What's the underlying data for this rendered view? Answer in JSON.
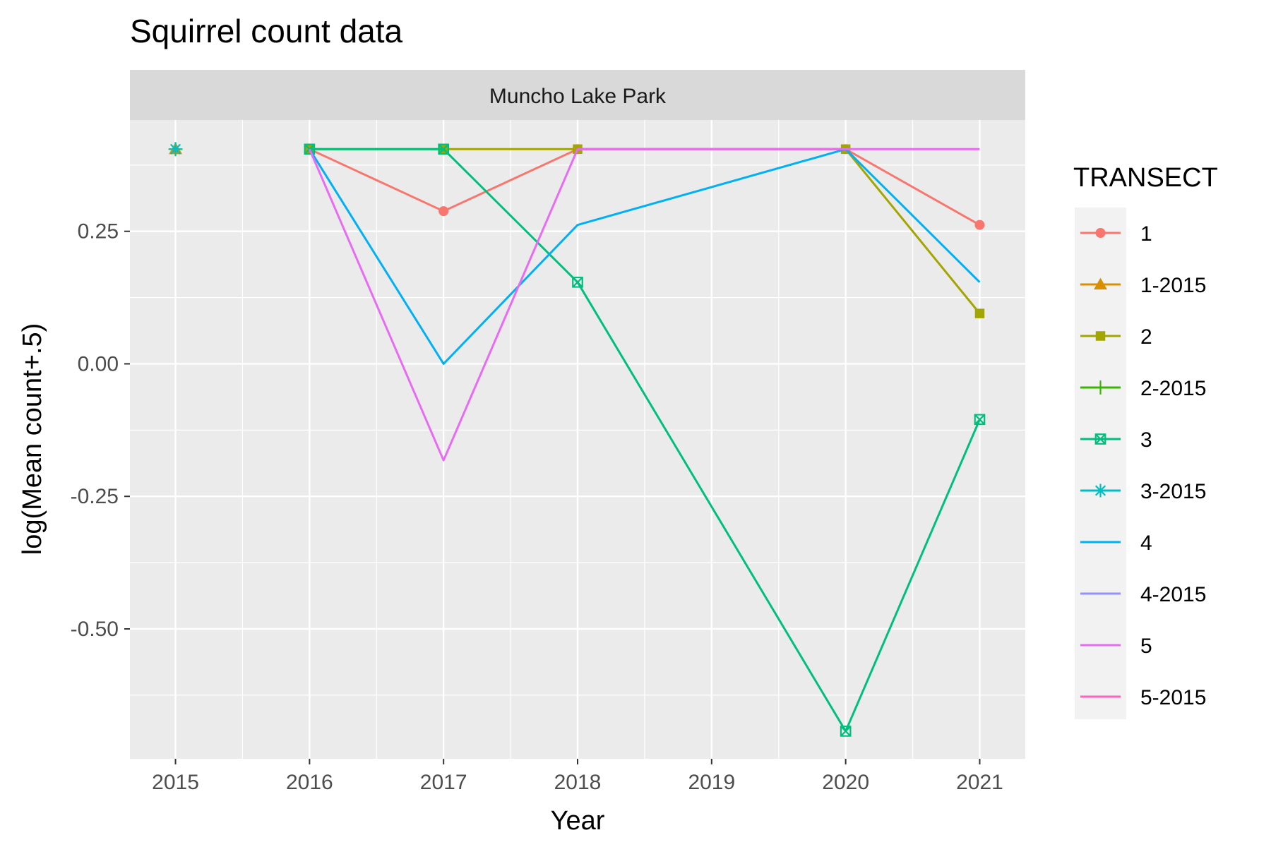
{
  "chart_data": {
    "type": "line",
    "title": "Squirrel count data",
    "facet_label": "Muncho Lake Park",
    "xlabel": "Year",
    "ylabel": "log(Mean count+.5)",
    "x_ticks": [
      "2015",
      "2016",
      "2017",
      "2018",
      "2019",
      "2020",
      "2021"
    ],
    "y_ticks": [
      {
        "value": 0.25,
        "label": "0.25"
      },
      {
        "value": 0.0,
        "label": "0.00"
      },
      {
        "value": -0.25,
        "label": "-0.25"
      },
      {
        "value": -0.5,
        "label": "-0.50"
      }
    ],
    "xlim": [
      2014.66,
      2021.34
    ],
    "ylim": [
      -0.745,
      0.46
    ],
    "grid": true,
    "legend_title": "TRANSECT",
    "legend_position": "right",
    "series": [
      {
        "name": "1",
        "color": "#F8766D",
        "marker": "circle",
        "points": [
          [
            2016,
            0.405
          ],
          [
            2017,
            0.288
          ],
          [
            2018,
            0.405
          ],
          [
            2020,
            0.405
          ],
          [
            2021,
            0.262
          ]
        ]
      },
      {
        "name": "1-2015",
        "color": "#D89000",
        "marker": "triangle",
        "points": [
          [
            2015,
            0.405
          ]
        ]
      },
      {
        "name": "2",
        "color": "#A3A500",
        "marker": "square",
        "points": [
          [
            2016,
            0.405
          ],
          [
            2017,
            0.405
          ],
          [
            2018,
            0.405
          ],
          [
            2020,
            0.405
          ],
          [
            2021,
            0.095
          ]
        ]
      },
      {
        "name": "2-2015",
        "color": "#39B600",
        "marker": "plus",
        "points": [
          [
            2015,
            0.405
          ]
        ]
      },
      {
        "name": "3",
        "color": "#00BF7D",
        "marker": "boxcross",
        "points": [
          [
            2016,
            0.405
          ],
          [
            2017,
            0.405
          ],
          [
            2018,
            0.154
          ],
          [
            2020,
            -0.693
          ],
          [
            2021,
            -0.105
          ]
        ]
      },
      {
        "name": "3-2015",
        "color": "#00BFC4",
        "marker": "asterisk",
        "points": [
          [
            2015,
            0.405
          ]
        ]
      },
      {
        "name": "4",
        "color": "#00B0F6",
        "marker": "none",
        "points": [
          [
            2016,
            0.405
          ],
          [
            2017,
            0.0
          ],
          [
            2018,
            0.262
          ],
          [
            2020,
            0.405
          ],
          [
            2021,
            0.154
          ]
        ]
      },
      {
        "name": "4-2015",
        "color": "#9590FF",
        "marker": "none",
        "points": [
          [
            2015,
            0.405
          ]
        ]
      },
      {
        "name": "5",
        "color": "#E76BF3",
        "marker": "none",
        "points": [
          [
            2016,
            0.405
          ],
          [
            2017,
            -0.182
          ],
          [
            2018,
            0.405
          ],
          [
            2020,
            0.405
          ],
          [
            2021,
            0.405
          ]
        ]
      },
      {
        "name": "5-2015",
        "color": "#FF62BC",
        "marker": "none",
        "points": [
          [
            2015,
            0.405
          ]
        ]
      }
    ]
  }
}
